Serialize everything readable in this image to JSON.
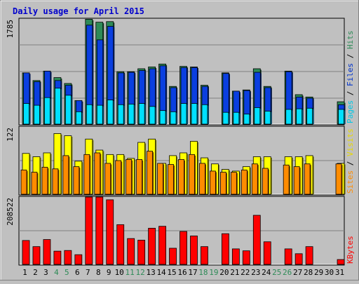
{
  "chart_data": {
    "type": "bar",
    "title": "Daily usage for April 2015",
    "categories": [
      "1",
      "2",
      "3",
      "4",
      "5",
      "6",
      "7",
      "8",
      "9",
      "10",
      "11",
      "12",
      "13",
      "14",
      "15",
      "16",
      "17",
      "18",
      "19",
      "20",
      "21",
      "22",
      "23",
      "24",
      "25",
      "26",
      "27",
      "28",
      "29",
      "30",
      "31"
    ],
    "weekend_days": [
      4,
      5,
      11,
      12,
      18,
      19,
      25,
      26
    ],
    "panels": [
      {
        "id": "top",
        "ymax_label": "1785",
        "ymax": 1785,
        "right_label": [
          {
            "text": "Pages",
            "color": "#00c8e6"
          },
          {
            "text": " / ",
            "color": "#000000"
          },
          {
            "text": "Files",
            "color": "#0033cc"
          },
          {
            "text": " / ",
            "color": "#000000"
          },
          {
            "text": "Hits",
            "color": "#2e8b57"
          }
        ],
        "series": [
          {
            "name": "Hits",
            "color": "#2e8b57",
            "values": [
              870,
              740,
              900,
              790,
              690,
              400,
              1780,
              1730,
              1740,
              890,
              890,
              940,
              970,
              1020,
              640,
              980,
              970,
              660,
              0,
              870,
              560,
              580,
              940,
              640,
              0,
              900,
              500,
              460,
              0,
              0,
              380
            ]
          },
          {
            "name": "Files",
            "color": "#0a3fe0",
            "values": [
              870,
              720,
              900,
              740,
              660,
              400,
              1680,
              1430,
              1660,
              870,
              880,
              910,
              940,
              990,
              620,
              960,
              960,
              640,
              0,
              860,
              560,
              570,
              880,
              620,
              0,
              890,
              460,
              440,
              0,
              0,
              330
            ]
          },
          {
            "name": "Pages",
            "color": "#00e0ff",
            "values": [
              350,
              320,
              450,
              610,
              490,
              210,
              330,
              320,
              410,
              330,
              340,
              350,
              300,
              230,
              210,
              350,
              350,
              330,
              0,
              200,
              200,
              170,
              280,
              220,
              0,
              250,
              260,
              270,
              0,
              0,
              250
            ]
          }
        ]
      },
      {
        "id": "mid",
        "ymax_label": "122",
        "ymax": 122,
        "right_label": [
          {
            "text": "Sites",
            "color": "#ff8c00"
          },
          {
            "text": " / ",
            "color": "#000000"
          },
          {
            "text": "Visits",
            "color": "#e6d800"
          }
        ],
        "series": [
          {
            "name": "Visits",
            "color": "#ffff00",
            "values": [
              74,
              68,
              75,
              110,
              106,
              60,
              100,
              80,
              72,
              72,
              65,
              94,
              100,
              56,
              70,
              75,
              96,
              66,
              55,
              45,
              42,
              50,
              68,
              68,
              0,
              68,
              68,
              70,
              0,
              0,
              56
            ]
          },
          {
            "name": "Sites",
            "color": "#ff8c00",
            "values": [
              44,
              40,
              49,
              46,
              70,
              50,
              72,
              75,
              56,
              61,
              63,
              63,
              78,
              56,
              54,
              63,
              72,
              56,
              42,
              40,
              40,
              44,
              55,
              47,
              0,
              53,
              50,
              55,
              0,
              0,
              55
            ]
          }
        ]
      },
      {
        "id": "bot",
        "ymax_label": "208522",
        "ymax": 208522,
        "right_label": [
          {
            "text": "KBytes",
            "color": "#ff0000"
          }
        ],
        "series": [
          {
            "name": "KBytes",
            "color": "#ff0000",
            "values": [
              74000,
              55000,
              77000,
              41000,
              43000,
              30000,
              208522,
              208522,
              200000,
              123000,
              80000,
              75000,
              112000,
              118000,
              50000,
              102000,
              88000,
              55000,
              0,
              95000,
              48000,
              42000,
              152000,
              70000,
              0,
              48000,
              33000,
              55000,
              0,
              0,
              15000
            ]
          }
        ]
      }
    ]
  }
}
